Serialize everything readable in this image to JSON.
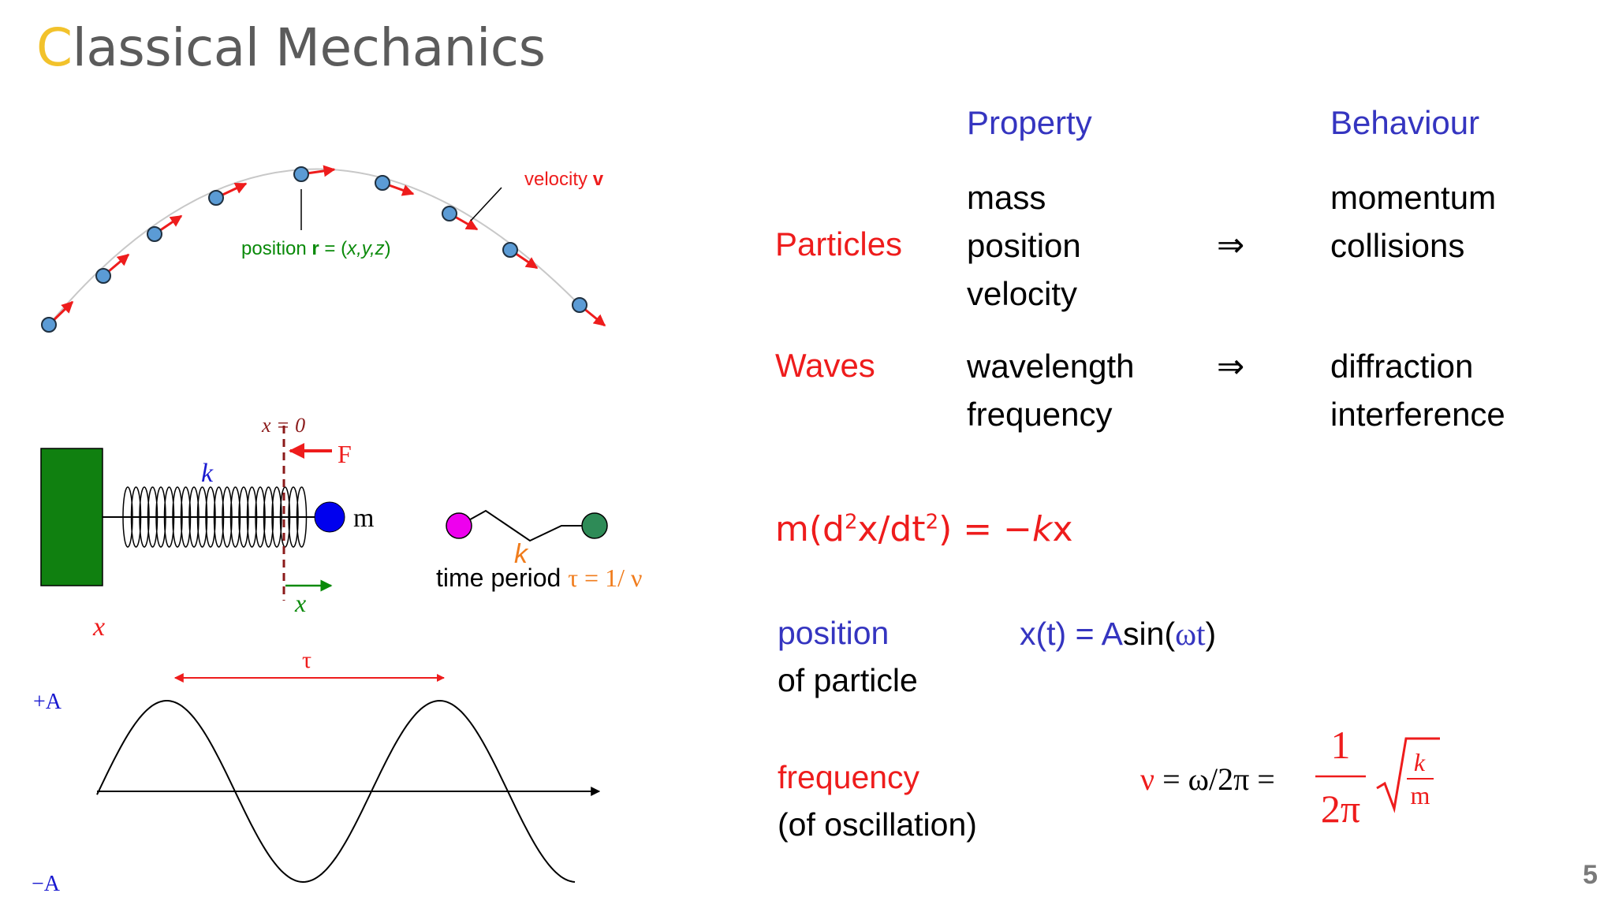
{
  "title": {
    "first_letter": "C",
    "rest": "lassical Mechanics"
  },
  "trajectory": {
    "velocity_label": "velocity ",
    "velocity_symbol": "v",
    "position_prefix": "position ",
    "position_symbol": "r",
    "position_eq": " = (",
    "position_coords": "x,y,z",
    "position_close": ")"
  },
  "spring": {
    "x_zero": "x = 0",
    "force": "F",
    "k": "k",
    "mass": "m",
    "x_arrow": "x",
    "x_axis_label": "x"
  },
  "molecule": {
    "k": "k",
    "time_period_text": "time period ",
    "tau_eq": "τ = 1/ ν"
  },
  "sine": {
    "tau": "τ",
    "plus_a": "+A",
    "minus_a": "−A"
  },
  "table": {
    "headers": {
      "property": "Property",
      "behaviour": "Behaviour"
    },
    "rows": [
      {
        "label": "Particles",
        "properties": [
          "mass",
          "position",
          "velocity"
        ],
        "arrow": "⇒",
        "behaviours": [
          "momentum",
          "collisions"
        ]
      },
      {
        "label": "Waves",
        "properties": [
          "wavelength",
          "frequency"
        ],
        "arrow": "⇒",
        "behaviours": [
          "diffraction",
          "interference"
        ]
      }
    ]
  },
  "equation_motion": {
    "m": "m(d",
    "sq1": "2",
    "mid": "x/dt",
    "sq2": "2",
    "rhs": ") = −",
    "k": "k",
    "x": "x"
  },
  "position_block": {
    "line1": "position",
    "line2": "of particle",
    "eq_x": "x(t) = ",
    "eq_a": "A",
    "eq_sin": "sin(",
    "eq_omega": "ωt",
    "eq_close": ")"
  },
  "frequency_block": {
    "line1": "frequency",
    "line2": "(of oscillation)",
    "nu": "ν",
    "eq_mid": " = ω/2π = ",
    "frac_num": "1",
    "frac_den": "2π",
    "sqrt_num": "k",
    "sqrt_den": "m"
  },
  "slide_number": "5",
  "colors": {
    "title": "#5b5b5b",
    "accent": "#f2c22b",
    "blue": "#3535c0",
    "red": "#ee1c1c",
    "green": "#0a8a0a",
    "orange": "#f07c1c"
  }
}
